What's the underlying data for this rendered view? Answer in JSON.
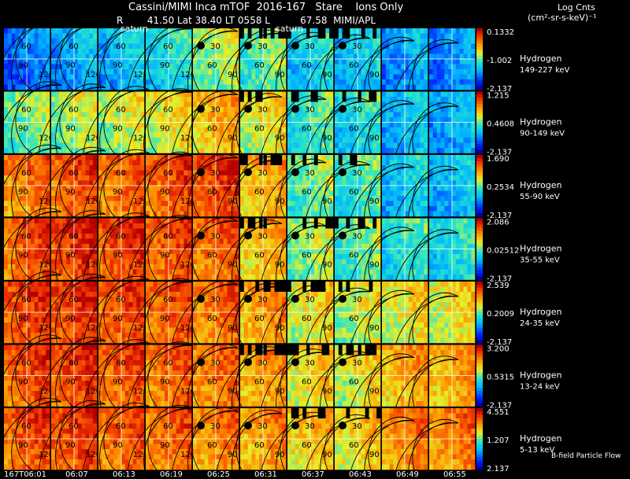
{
  "header": {
    "title": "Cassini/MIMI Inca mTOF  2016-167   Stare    Ions Only",
    "subtitle": "R        41.50 Lat 38.40 LT 0558 L          67.58  MIMI/APL",
    "units_line1": "Log Cnts",
    "units_line2": "(cm²-sr-s-keV)⁻¹",
    "planet_labels": [
      "saturn",
      "saturn"
    ]
  },
  "contour_labels": [
    "30",
    "60",
    "90",
    "120"
  ],
  "footer": {
    "flow_label": "B-field Particle Flow"
  },
  "chart_data": {
    "type": "heatmap",
    "title": "Cassini/MIMI Inca mTOF  2016-167   Stare    Ions Only",
    "colorbar_label": "Log Cnts (cm²-sr-s-keV)⁻¹",
    "columns_time": [
      "167T06:01",
      "06:07",
      "06:13",
      "06:19",
      "06:25",
      "06:31",
      "06:37",
      "06:43",
      "06:49",
      "06:55"
    ],
    "rows": [
      {
        "species": "Hydrogen",
        "energy": "149-227 keV",
        "cb_max": "0.1332",
        "cb_mid": "-1.002",
        "cb_min": "-2.137",
        "intensity": [
          0.22,
          0.3,
          0.33,
          0.4,
          0.55,
          0.5,
          0.38,
          0.35,
          0.28,
          0.25
        ]
      },
      {
        "species": "Hydrogen",
        "energy": "90-149 keV",
        "cb_max": "1.215",
        "cb_mid": "0.4608",
        "cb_min": "-2.137",
        "intensity": [
          0.5,
          0.55,
          0.58,
          0.62,
          0.7,
          0.62,
          0.45,
          0.4,
          0.33,
          0.3
        ]
      },
      {
        "species": "Hydrogen",
        "energy": "55-90 keV",
        "cb_max": "1.690",
        "cb_mid": "0.2534",
        "cb_min": "-2.137",
        "intensity": [
          0.8,
          0.85,
          0.82,
          0.85,
          0.88,
          0.7,
          0.5,
          0.45,
          0.35,
          0.33
        ]
      },
      {
        "species": "Hydrogen",
        "energy": "35-55 keV",
        "cb_max": "2.086",
        "cb_mid": "0.02512",
        "cb_min": "-2.137",
        "intensity": [
          0.85,
          0.9,
          0.88,
          0.85,
          0.82,
          0.7,
          0.55,
          0.48,
          0.42,
          0.4
        ]
      },
      {
        "species": "Hydrogen",
        "energy": "24-35 keV",
        "cb_max": "2.539",
        "cb_mid": "0.2009",
        "cb_min": "-2.137",
        "intensity": [
          0.88,
          0.9,
          0.86,
          0.84,
          0.8,
          0.74,
          0.62,
          0.58,
          0.62,
          0.62
        ]
      },
      {
        "species": "Hydrogen",
        "energy": "13-24 keV",
        "cb_max": "3.200",
        "cb_mid": "0.5315",
        "cb_min": "-2.137",
        "intensity": [
          0.86,
          0.88,
          0.84,
          0.82,
          0.8,
          0.74,
          0.65,
          0.62,
          0.72,
          0.72
        ]
      },
      {
        "species": "Hydrogen",
        "energy": "5-13 keV",
        "cb_max": "4.551",
        "cb_mid": "1.207",
        "cb_min": "2.137",
        "intensity": [
          0.85,
          0.88,
          0.84,
          0.82,
          0.78,
          0.74,
          0.68,
          0.66,
          0.78,
          0.78
        ]
      }
    ]
  }
}
